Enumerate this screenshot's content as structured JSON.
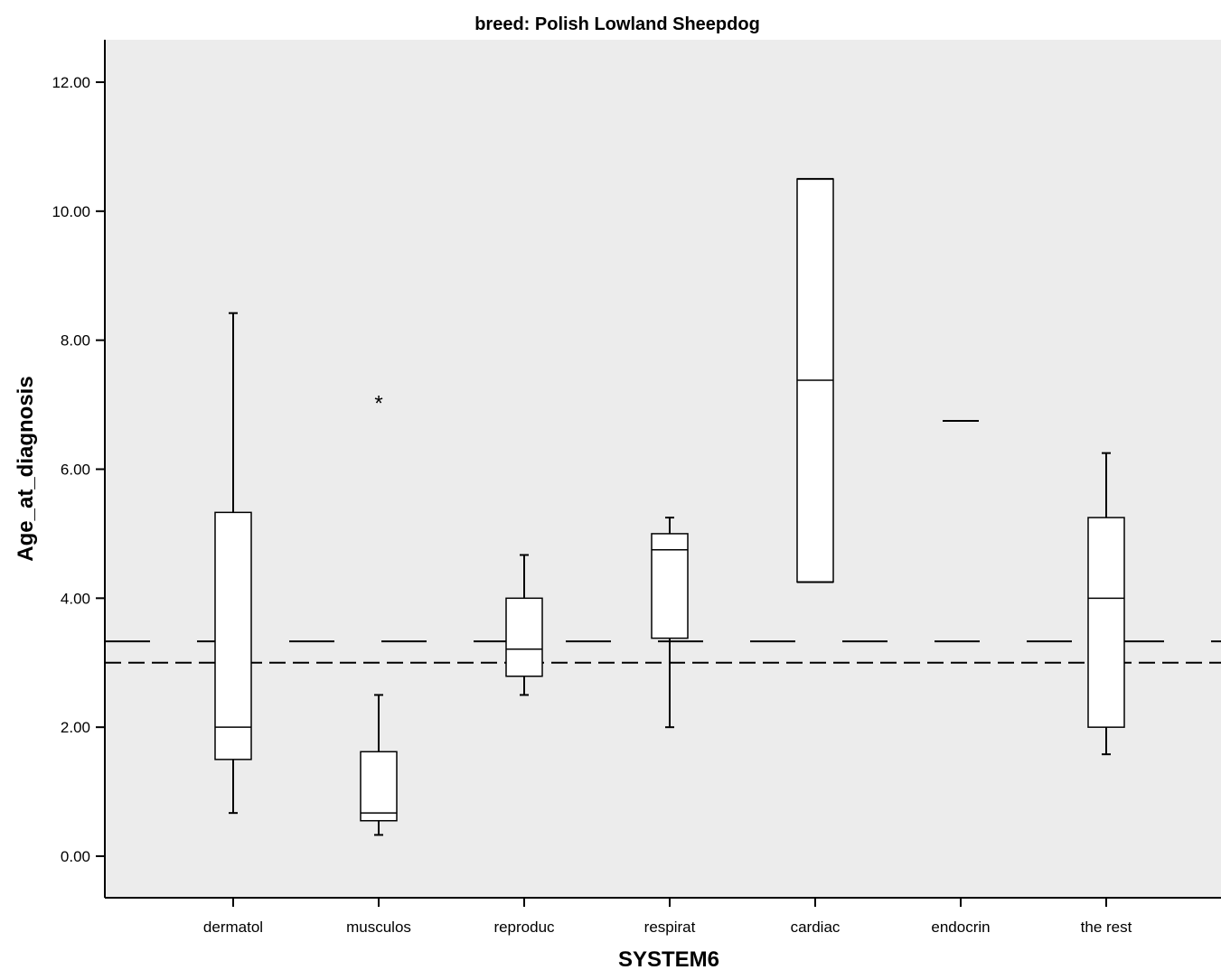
{
  "chart_data": {
    "type": "boxplot",
    "title": "breed: Polish Lowland Sheepdog",
    "xlabel": "SYSTEM6",
    "ylabel": "Age_at_diagnosis",
    "ylim": [
      -0.65,
      12.65
    ],
    "yticks": [
      0,
      2,
      4,
      6,
      8,
      10,
      12
    ],
    "ytick_labels": [
      "0.00",
      "2.00",
      "4.00",
      "6.00",
      "8.00",
      "10.00",
      "12.00"
    ],
    "categories": [
      "dermatol",
      "musculos",
      "reproduc",
      "respirat",
      "cardiac",
      "endocrin",
      "the rest"
    ],
    "boxes": [
      {
        "category": "dermatol",
        "whisker_low": 0.67,
        "q1": 1.5,
        "median": 2.0,
        "q3": 5.33,
        "whisker_high": 8.42,
        "outliers": []
      },
      {
        "category": "musculos",
        "whisker_low": 0.33,
        "q1": 0.55,
        "median": 0.67,
        "q3": 1.62,
        "whisker_high": 2.5,
        "outliers": [],
        "extremes": [
          7.08
        ]
      },
      {
        "category": "reproduc",
        "whisker_low": 2.5,
        "q1": 2.79,
        "median": 3.21,
        "q3": 4.0,
        "whisker_high": 4.67,
        "outliers": []
      },
      {
        "category": "respirat",
        "whisker_low": 2.0,
        "q1": 3.38,
        "median": 4.75,
        "q3": 5.0,
        "whisker_high": 5.25,
        "outliers": []
      },
      {
        "category": "cardiac",
        "whisker_low": 4.25,
        "q1": 4.25,
        "median": 7.38,
        "q3": 10.5,
        "whisker_high": 10.5,
        "outliers": []
      },
      {
        "category": "endocrin",
        "whisker_low": 6.75,
        "q1": 6.75,
        "median": 6.75,
        "q3": 6.75,
        "whisker_high": 6.75,
        "outliers": []
      },
      {
        "category": "the rest",
        "whisker_low": 1.58,
        "q1": 2.0,
        "median": 4.0,
        "q3": 5.25,
        "whisker_high": 6.25,
        "outliers": []
      }
    ],
    "reference_lines": [
      {
        "y": 3.33,
        "style": "long-dash"
      },
      {
        "y": 3.0,
        "style": "dash"
      }
    ],
    "colors": {
      "plot_background": "#ececec",
      "box_fill": "#ffffff",
      "stroke": "#000000"
    },
    "grid": false,
    "legend": "none"
  }
}
